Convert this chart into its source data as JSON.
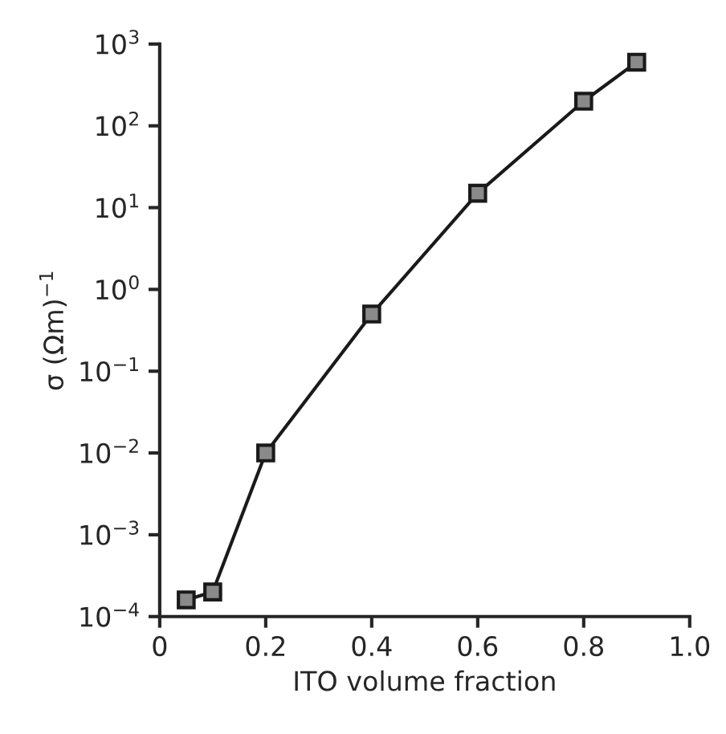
{
  "chart_data": {
    "type": "line",
    "xlabel": "ITO volume fraction",
    "ylabel": "σ (Ωm)$^{−1}$",
    "x": [
      0.05,
      0.1,
      0.2,
      0.4,
      0.6,
      0.8,
      0.9
    ],
    "series": [
      {
        "color": "#1a1a1a",
        "values": [
          0.00016,
          0.0002,
          0.01,
          0.5,
          15,
          200,
          600
        ]
      }
    ],
    "log": "y",
    "marker": "square",
    "line_style": "solid",
    "grid": false,
    "legend": false,
    "xlim": [
      0,
      1.0
    ],
    "xticks": [
      0,
      0.2,
      0.4,
      0.6,
      0.8,
      {
        "value": 1.0,
        "label": "1.0"
      }
    ],
    "ylim": [
      0.0001,
      1000
    ],
    "yticks": [
      {
        "value": 0.0001,
        "label": "10$^{−4}$"
      },
      {
        "value": 0.001,
        "label": "10$^{−3}$"
      },
      {
        "value": 0.01,
        "label": "10$^{−2}$"
      },
      {
        "value": 0.1,
        "label": "10$^{−1}$"
      },
      {
        "value": 1,
        "label": "10$^{0}$"
      },
      {
        "value": 10,
        "label": "10$^{1}$"
      },
      {
        "value": 100,
        "label": "10$^{2}$"
      },
      {
        "value": 1000,
        "label": "10$^{3}$"
      }
    ]
  }
}
